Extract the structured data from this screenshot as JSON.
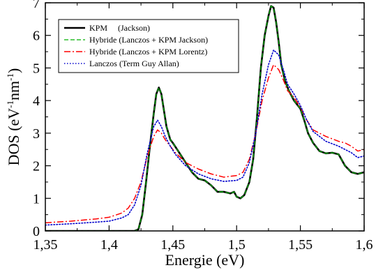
{
  "chart_data": {
    "type": "line",
    "xlabel": "Energie (eV)",
    "ylabel_main": "DOS (eV",
    "ylabel_sup1": "-1",
    "ylabel_mid": "nm",
    "ylabel_sup2": "-1",
    "ylabel_end": ")",
    "xlim": [
      1.35,
      1.6
    ],
    "ylim": [
      0,
      7
    ],
    "x_ticks": [
      {
        "value": 1.35,
        "label": "1,35"
      },
      {
        "value": 1.4,
        "label": "1,4"
      },
      {
        "value": 1.45,
        "label": "1,45"
      },
      {
        "value": 1.5,
        "label": "1,5"
      },
      {
        "value": 1.55,
        "label": "1,55"
      },
      {
        "value": 1.6,
        "label": "1,6"
      }
    ],
    "y_ticks": [
      {
        "value": 0,
        "label": "0"
      },
      {
        "value": 1,
        "label": "1"
      },
      {
        "value": 2,
        "label": "2"
      },
      {
        "value": 3,
        "label": "3"
      },
      {
        "value": 4,
        "label": "4"
      },
      {
        "value": 5,
        "label": "5"
      },
      {
        "value": 6,
        "label": "6"
      },
      {
        "value": 7,
        "label": "7"
      }
    ],
    "grid": false,
    "legend_position": "top-left",
    "series": [
      {
        "name": "KPM     (Jackson)",
        "color": "#000000",
        "style": "solid",
        "x": [
          1.35,
          1.4,
          1.415,
          1.42,
          1.423,
          1.426,
          1.429,
          1.432,
          1.435,
          1.437,
          1.439,
          1.441,
          1.443,
          1.445,
          1.448,
          1.45,
          1.455,
          1.46,
          1.465,
          1.47,
          1.475,
          1.48,
          1.485,
          1.49,
          1.495,
          1.498,
          1.5,
          1.503,
          1.506,
          1.51,
          1.513,
          1.516,
          1.519,
          1.522,
          1.525,
          1.527,
          1.529,
          1.531,
          1.533,
          1.535,
          1.538,
          1.541,
          1.545,
          1.55,
          1.553,
          1.556,
          1.56,
          1.565,
          1.57,
          1.575,
          1.58,
          1.585,
          1.59,
          1.595,
          1.6
        ],
        "y": [
          0,
          0,
          0,
          0,
          0.05,
          0.5,
          1.5,
          2.6,
          3.6,
          4.2,
          4.4,
          4.2,
          3.7,
          3.2,
          2.8,
          2.7,
          2.4,
          2.1,
          1.8,
          1.6,
          1.55,
          1.4,
          1.2,
          1.2,
          1.15,
          1.2,
          1.05,
          1.0,
          1.1,
          1.5,
          2.2,
          3.5,
          5.0,
          6.0,
          6.6,
          6.9,
          6.85,
          6.4,
          5.8,
          5.1,
          4.6,
          4.3,
          4.0,
          3.75,
          3.4,
          3.0,
          2.7,
          2.45,
          2.38,
          2.4,
          2.35,
          2.0,
          1.8,
          1.75,
          1.8
        ]
      },
      {
        "name": "Hybride (Lanczos + KPM Jackson)",
        "color": "#00b000",
        "style": "dashed",
        "x": [
          1.35,
          1.4,
          1.415,
          1.42,
          1.423,
          1.426,
          1.429,
          1.432,
          1.435,
          1.437,
          1.439,
          1.441,
          1.443,
          1.445,
          1.448,
          1.45,
          1.455,
          1.46,
          1.465,
          1.47,
          1.475,
          1.48,
          1.485,
          1.49,
          1.495,
          1.498,
          1.5,
          1.503,
          1.506,
          1.51,
          1.513,
          1.516,
          1.519,
          1.522,
          1.525,
          1.527,
          1.529,
          1.531,
          1.533,
          1.535,
          1.538,
          1.541,
          1.545,
          1.55,
          1.553,
          1.556,
          1.56,
          1.565,
          1.57,
          1.575,
          1.58,
          1.585,
          1.59,
          1.595,
          1.6
        ],
        "y": [
          0,
          0,
          0,
          0,
          0.05,
          0.5,
          1.5,
          2.6,
          3.6,
          4.2,
          4.4,
          4.2,
          3.7,
          3.2,
          2.8,
          2.7,
          2.4,
          2.1,
          1.8,
          1.6,
          1.55,
          1.4,
          1.2,
          1.2,
          1.15,
          1.2,
          1.05,
          1.0,
          1.1,
          1.5,
          2.2,
          3.5,
          5.0,
          6.0,
          6.6,
          6.9,
          6.85,
          6.4,
          5.8,
          5.1,
          4.6,
          4.3,
          4.0,
          3.75,
          3.4,
          3.0,
          2.7,
          2.45,
          2.38,
          2.4,
          2.35,
          2.0,
          1.8,
          1.75,
          1.8
        ]
      },
      {
        "name": "Hybride (Lanczos + KPM Lorentz)",
        "color": "#ff0000",
        "style": "dashdot",
        "x": [
          1.35,
          1.37,
          1.39,
          1.4,
          1.41,
          1.415,
          1.42,
          1.425,
          1.43,
          1.435,
          1.438,
          1.441,
          1.444,
          1.448,
          1.452,
          1.46,
          1.47,
          1.48,
          1.49,
          1.5,
          1.505,
          1.51,
          1.515,
          1.52,
          1.525,
          1.529,
          1.533,
          1.537,
          1.54,
          1.545,
          1.55,
          1.555,
          1.56,
          1.57,
          1.58,
          1.585,
          1.59,
          1.595,
          1.6
        ],
        "y": [
          0.25,
          0.3,
          0.37,
          0.42,
          0.55,
          0.7,
          1.0,
          1.5,
          2.3,
          2.9,
          3.1,
          3.0,
          2.8,
          2.6,
          2.4,
          2.1,
          1.9,
          1.75,
          1.65,
          1.7,
          1.8,
          2.2,
          3.0,
          4.0,
          4.7,
          5.1,
          4.95,
          4.6,
          4.3,
          4.1,
          3.8,
          3.4,
          3.1,
          2.9,
          2.75,
          2.7,
          2.6,
          2.45,
          2.5
        ]
      },
      {
        "name": "Lanczos (Term Guy Allan)",
        "color": "#0000cc",
        "style": "dotted",
        "x": [
          1.35,
          1.37,
          1.39,
          1.4,
          1.41,
          1.415,
          1.42,
          1.425,
          1.43,
          1.435,
          1.438,
          1.441,
          1.444,
          1.448,
          1.452,
          1.46,
          1.47,
          1.48,
          1.49,
          1.5,
          1.505,
          1.51,
          1.515,
          1.52,
          1.525,
          1.529,
          1.533,
          1.537,
          1.54,
          1.545,
          1.55,
          1.555,
          1.56,
          1.57,
          1.58,
          1.585,
          1.59,
          1.595,
          1.6
        ],
        "y": [
          0.18,
          0.22,
          0.27,
          0.3,
          0.4,
          0.5,
          0.8,
          1.4,
          2.4,
          3.2,
          3.4,
          3.2,
          2.9,
          2.6,
          2.35,
          2.0,
          1.75,
          1.6,
          1.52,
          1.55,
          1.65,
          2.1,
          3.0,
          4.2,
          5.1,
          5.55,
          5.4,
          4.9,
          4.5,
          4.2,
          3.85,
          3.4,
          3.05,
          2.75,
          2.6,
          2.5,
          2.4,
          2.25,
          2.3
        ]
      }
    ]
  }
}
